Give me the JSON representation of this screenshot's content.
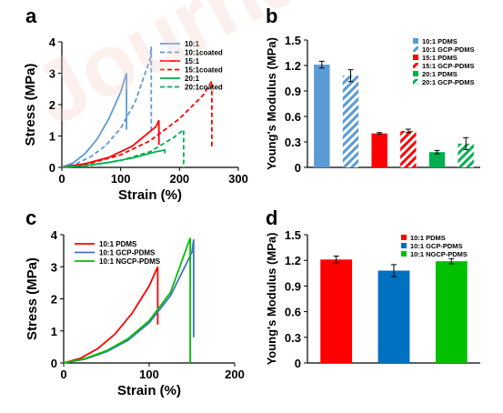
{
  "watermark": "Journal",
  "chart_data": [
    {
      "panel": "a",
      "type": "line",
      "xlabel": "Strain (%)",
      "ylabel": "Stress (MPa)",
      "xlim": [
        0,
        300
      ],
      "ylim": [
        0,
        4
      ],
      "xticks": [
        "0",
        "100",
        "200",
        "300"
      ],
      "yticks": [
        "0",
        "1",
        "2",
        "3",
        "4"
      ],
      "grid": false,
      "legend": "top-right",
      "series": [
        {
          "name": "10:1",
          "color": "#5b9bd5",
          "dashed": false,
          "x": [
            0,
            20,
            40,
            60,
            80,
            100,
            110,
            110
          ],
          "y": [
            0,
            0.15,
            0.45,
            0.9,
            1.55,
            2.4,
            3.0,
            1.2
          ]
        },
        {
          "name": "10:1coated",
          "color": "#5b9bd5",
          "dashed": true,
          "x": [
            0,
            25,
            50,
            75,
            100,
            125,
            150,
            152,
            152
          ],
          "y": [
            0,
            0.12,
            0.35,
            0.7,
            1.25,
            2.1,
            3.45,
            3.85,
            1.1
          ]
        },
        {
          "name": "15:1",
          "color": "#ff0000",
          "dashed": false,
          "x": [
            0,
            40,
            80,
            120,
            160,
            165,
            165
          ],
          "y": [
            0,
            0.12,
            0.32,
            0.68,
            1.3,
            1.5,
            0.72
          ]
        },
        {
          "name": "15:1coated",
          "color": "#ff0000",
          "dashed": true,
          "x": [
            0,
            50,
            100,
            150,
            200,
            240,
            255,
            255
          ],
          "y": [
            0,
            0.14,
            0.4,
            0.85,
            1.55,
            2.3,
            2.75,
            0.62
          ]
        },
        {
          "name": "20:1",
          "color": "#00b050",
          "dashed": false,
          "x": [
            0,
            40,
            80,
            120,
            160,
            175,
            175
          ],
          "y": [
            0,
            0.06,
            0.16,
            0.3,
            0.5,
            0.55,
            0.45
          ]
        },
        {
          "name": "20:1coated",
          "color": "#00b050",
          "dashed": true,
          "x": [
            0,
            50,
            100,
            150,
            190,
            207,
            207
          ],
          "y": [
            0,
            0.07,
            0.22,
            0.5,
            0.95,
            1.2,
            0
          ]
        }
      ]
    },
    {
      "panel": "b",
      "type": "bar",
      "ylabel": "Young's Modulus (MPa)",
      "ylim": [
        0,
        1.5
      ],
      "yticks": [
        "0",
        "0.3",
        "0.6",
        "0.9",
        "1.2",
        "1.5"
      ],
      "legend": "top-right",
      "categories": [
        "10:1 PDMS",
        "10:1 GCP-PDMS",
        "15:1 PDMS",
        "15:1 GCP-PDMS",
        "20:1 PDMS",
        "20:1 GCP-PDMS"
      ],
      "values": [
        1.21,
        1.08,
        0.4,
        0.43,
        0.18,
        0.28
      ],
      "errors": [
        0.04,
        0.07,
        0.01,
        0.02,
        0.02,
        0.07
      ],
      "colors": [
        "#5b9bd5",
        "#5b9bd5",
        "#ff0000",
        "#ff0000",
        "#00b050",
        "#00b050"
      ],
      "hatched": [
        false,
        true,
        false,
        true,
        false,
        true
      ]
    },
    {
      "panel": "c",
      "type": "line",
      "xlabel": "Strain (%)",
      "ylabel": "Stress (MPa)",
      "xlim": [
        0,
        200
      ],
      "ylim": [
        0,
        4
      ],
      "xticks": [
        "0",
        "100",
        "200"
      ],
      "yticks": [
        "0",
        "1",
        "2",
        "3",
        "4"
      ],
      "grid": false,
      "legend": "top-left",
      "series": [
        {
          "name": "10:1 PDMS",
          "color": "#ff0000",
          "dashed": false,
          "x": [
            0,
            20,
            40,
            60,
            80,
            100,
            110,
            110
          ],
          "y": [
            0,
            0.15,
            0.45,
            0.9,
            1.55,
            2.4,
            3.0,
            1.2
          ]
        },
        {
          "name": "10:1 GCP-PDMS",
          "color": "#4472c4",
          "dashed": false,
          "x": [
            0,
            25,
            50,
            75,
            100,
            125,
            150,
            152,
            152
          ],
          "y": [
            0,
            0.12,
            0.35,
            0.7,
            1.25,
            2.1,
            3.45,
            3.85,
            0.8
          ]
        },
        {
          "name": "10:1 NGCP-PDMS",
          "color": "#00c000",
          "dashed": false,
          "x": [
            0,
            25,
            50,
            75,
            100,
            125,
            148,
            148
          ],
          "y": [
            0,
            0.14,
            0.38,
            0.75,
            1.32,
            2.2,
            3.9,
            0
          ]
        }
      ]
    },
    {
      "panel": "d",
      "type": "bar",
      "ylabel": "Young's Modulus (MPa)",
      "ylim": [
        0,
        1.5
      ],
      "yticks": [
        "0",
        "0.3",
        "0.6",
        "0.9",
        "1.2",
        "1.5"
      ],
      "legend": "top-right",
      "categories": [
        "10:1 PDMS",
        "10:1 GCP-PDMS",
        "10:1 NGCP-PDMS"
      ],
      "values": [
        1.21,
        1.08,
        1.19
      ],
      "errors": [
        0.04,
        0.07,
        0.03
      ],
      "colors": [
        "#ff0000",
        "#0070c0",
        "#00c000"
      ],
      "hatched": [
        false,
        false,
        false
      ]
    }
  ]
}
